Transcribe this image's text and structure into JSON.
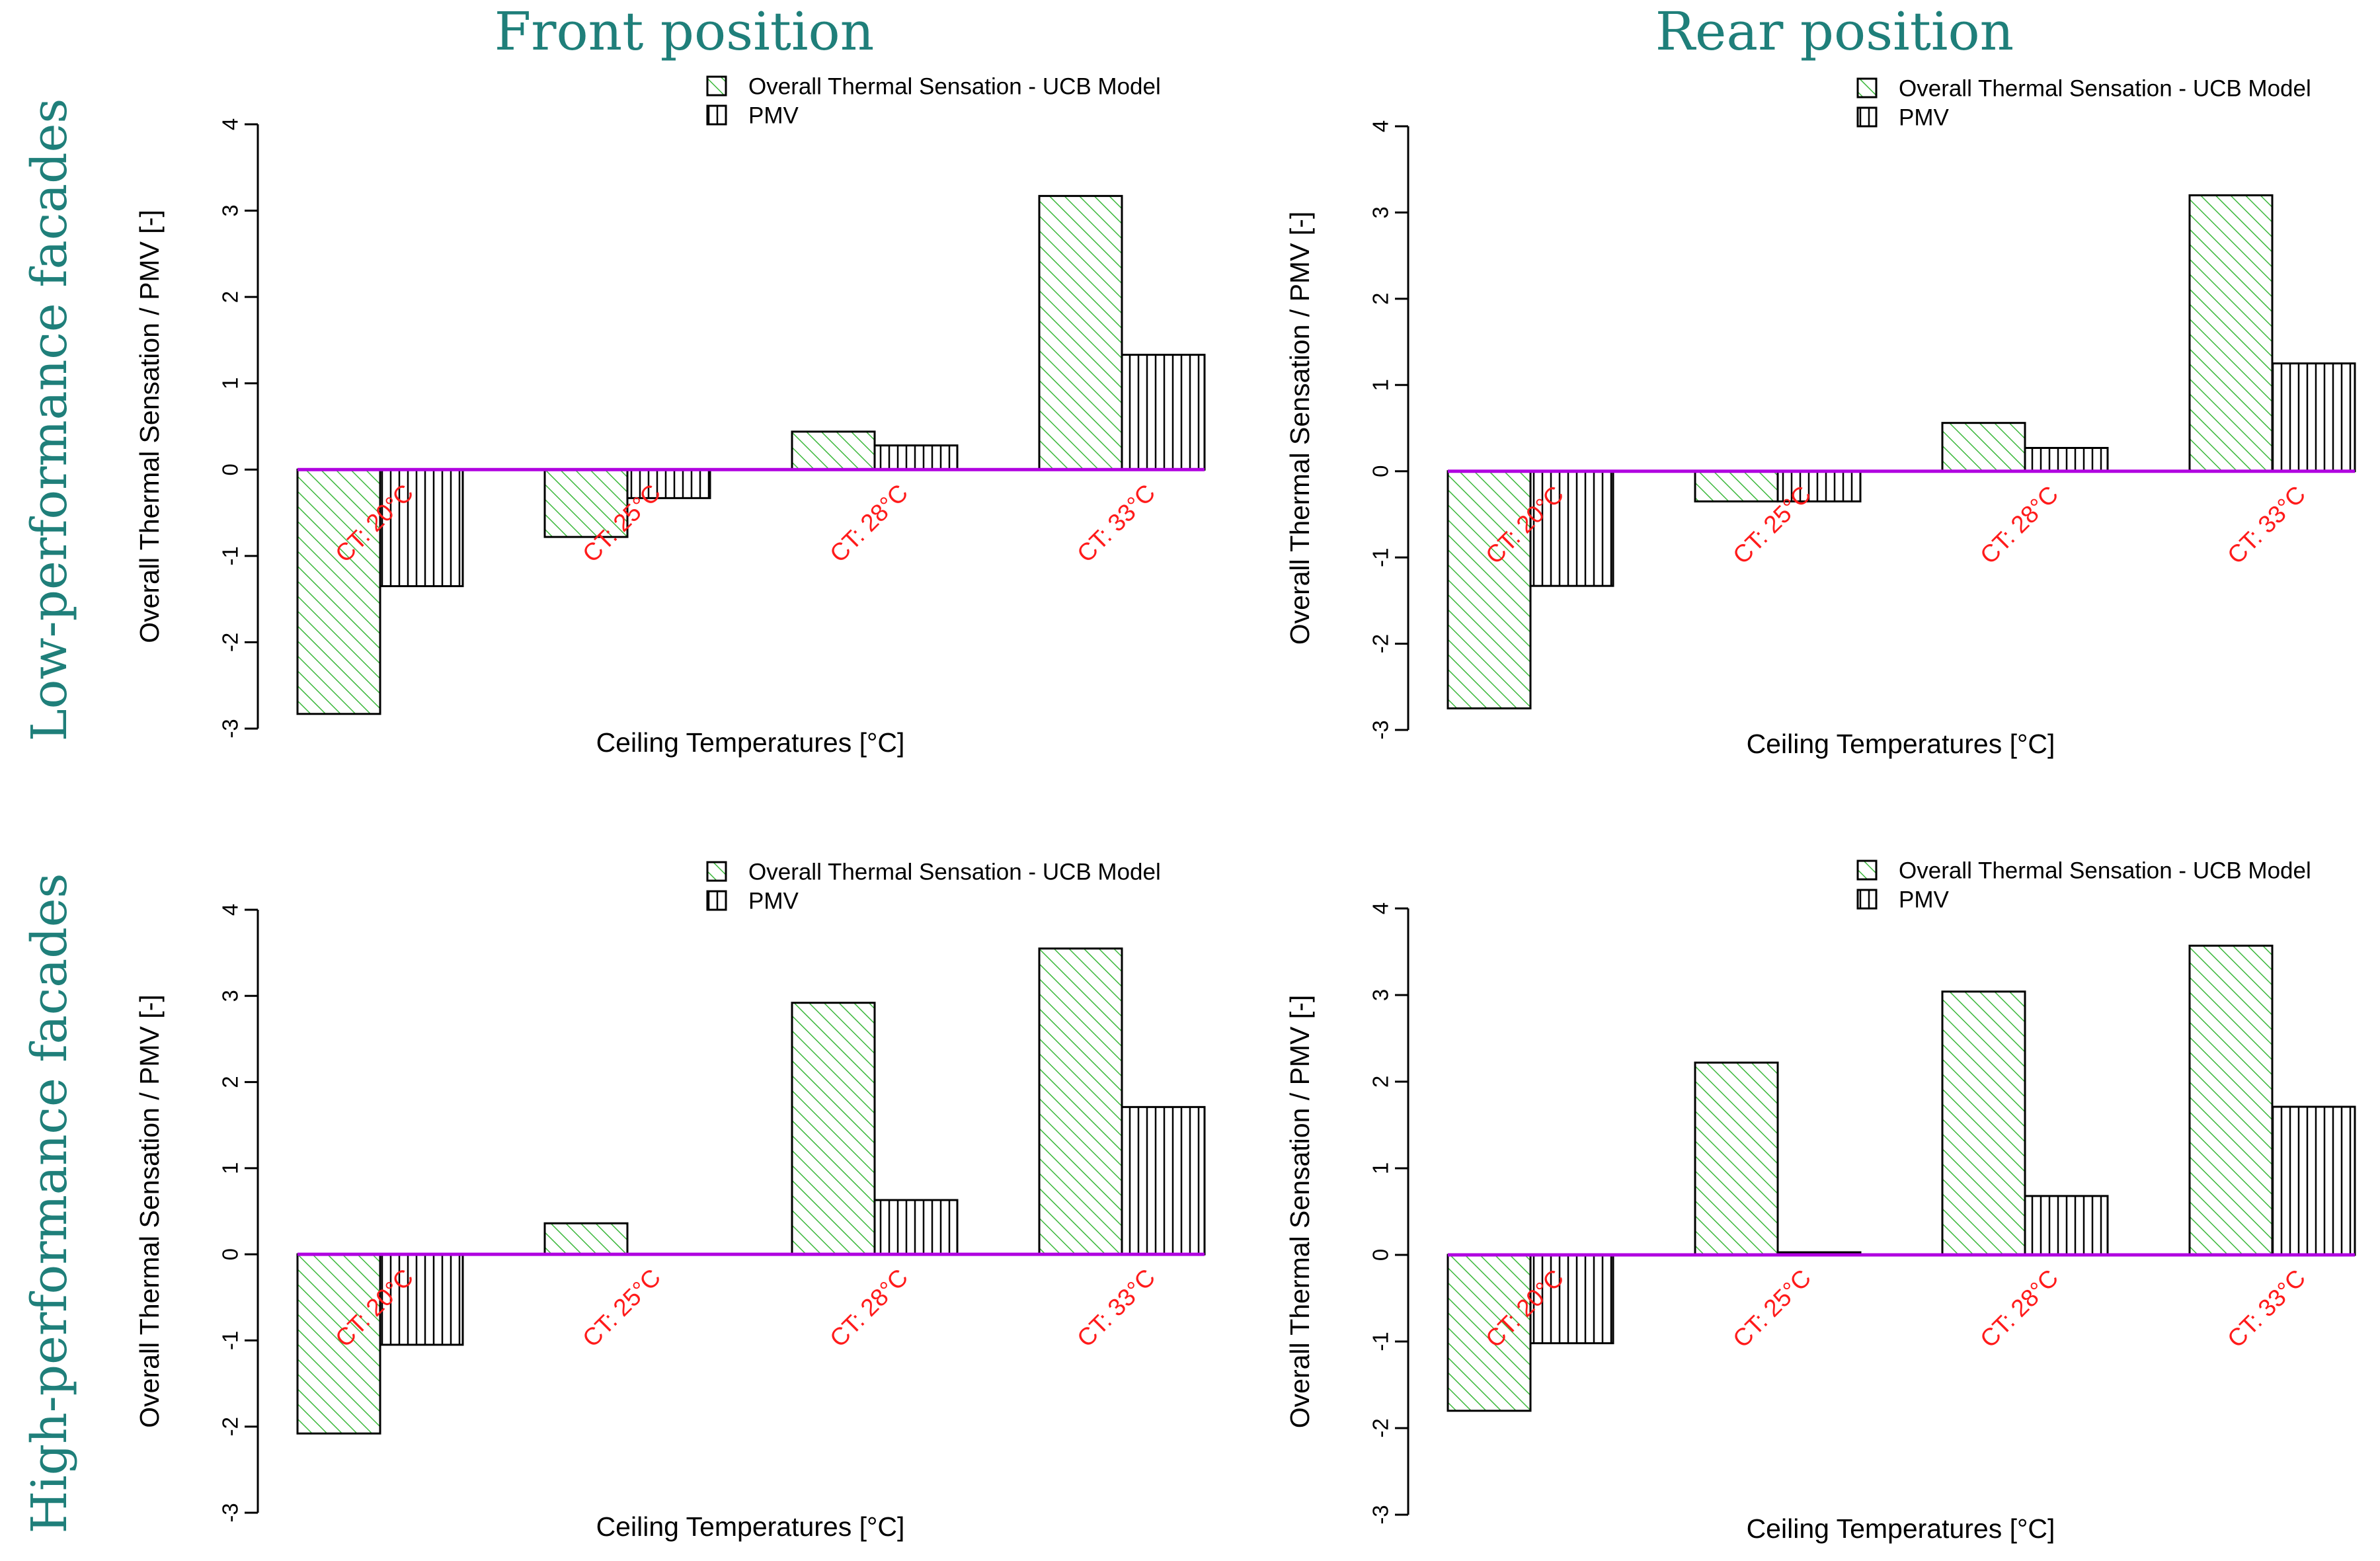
{
  "figure": {
    "column_titles": [
      "Front position",
      "Rear position"
    ],
    "row_titles": [
      "Low-performance facades",
      "High-performance facades"
    ]
  },
  "colors": {
    "title_teal": "#1f7f7a",
    "ucb_hatch": "#3cb83c",
    "pmv_hatch": "#000000",
    "baseline": "#b000e0",
    "category_label": "#ff1a1a"
  },
  "chart_data": [
    {
      "type": "bar",
      "panel": "Low-performance facades / Front position",
      "categories": [
        "CT: 20°C",
        "CT: 25°C",
        "CT: 28°C",
        "CT: 33°C"
      ],
      "series": [
        {
          "name": "Overall Thermal Sensation - UCB Model",
          "values": [
            -2.83,
            -0.78,
            0.44,
            3.17
          ]
        },
        {
          "name": "PMV",
          "values": [
            -1.35,
            -0.33,
            0.28,
            1.33
          ]
        }
      ],
      "xlabel": "Ceiling Temperatures [°C]",
      "ylabel": "Overall Thermal Sensation / PMV [-]",
      "ylim": [
        -3,
        4
      ],
      "yticks": [
        "-3",
        "-2",
        "-1",
        "0",
        "1",
        "2",
        "3",
        "4"
      ],
      "legend_position": "top-right"
    },
    {
      "type": "bar",
      "panel": "Low-performance facades / Rear position",
      "categories": [
        "CT: 20°C",
        "CT: 25°C",
        "CT: 28°C",
        "CT: 33°C"
      ],
      "series": [
        {
          "name": "Overall Thermal Sensation - UCB Model",
          "values": [
            -2.75,
            -0.35,
            0.56,
            3.2
          ]
        },
        {
          "name": "PMV",
          "values": [
            -1.33,
            -0.35,
            0.27,
            1.25
          ]
        }
      ],
      "xlabel": "Ceiling Temperatures [°C]",
      "ylabel": "Overall Thermal Sensation / PMV [-]",
      "ylim": [
        -3,
        4
      ],
      "yticks": [
        "-3",
        "-2",
        "-1",
        "0",
        "1",
        "2",
        "3",
        "4"
      ],
      "legend_position": "top-right"
    },
    {
      "type": "bar",
      "panel": "High-performance facades / Front position",
      "categories": [
        "CT: 20°C",
        "CT: 25°C",
        "CT: 28°C",
        "CT: 33°C"
      ],
      "series": [
        {
          "name": "Overall Thermal Sensation - UCB Model",
          "values": [
            -2.08,
            0.36,
            2.92,
            3.55
          ]
        },
        {
          "name": "PMV",
          "values": [
            -1.05,
            0.0,
            0.63,
            1.71
          ]
        }
      ],
      "xlabel": "Ceiling Temperatures [°C]",
      "ylabel": "Overall Thermal Sensation / PMV [-]",
      "ylim": [
        -3,
        4
      ],
      "yticks": [
        "-3",
        "-2",
        "-1",
        "0",
        "1",
        "2",
        "3",
        "4"
      ],
      "legend_position": "top-right"
    },
    {
      "type": "bar",
      "panel": "High-performance facades / Rear position",
      "categories": [
        "CT: 20°C",
        "CT: 25°C",
        "CT: 28°C",
        "CT: 33°C"
      ],
      "series": [
        {
          "name": "Overall Thermal Sensation - UCB Model",
          "values": [
            -1.8,
            2.22,
            3.04,
            3.57
          ]
        },
        {
          "name": "PMV",
          "values": [
            -1.02,
            0.03,
            0.68,
            1.71
          ]
        }
      ],
      "xlabel": "Ceiling Temperatures [°C]",
      "ylabel": "Overall Thermal Sensation / PMV [-]",
      "ylim": [
        -3,
        4
      ],
      "yticks": [
        "-3",
        "-2",
        "-1",
        "0",
        "1",
        "2",
        "3",
        "4"
      ],
      "legend_position": "top-right"
    }
  ]
}
